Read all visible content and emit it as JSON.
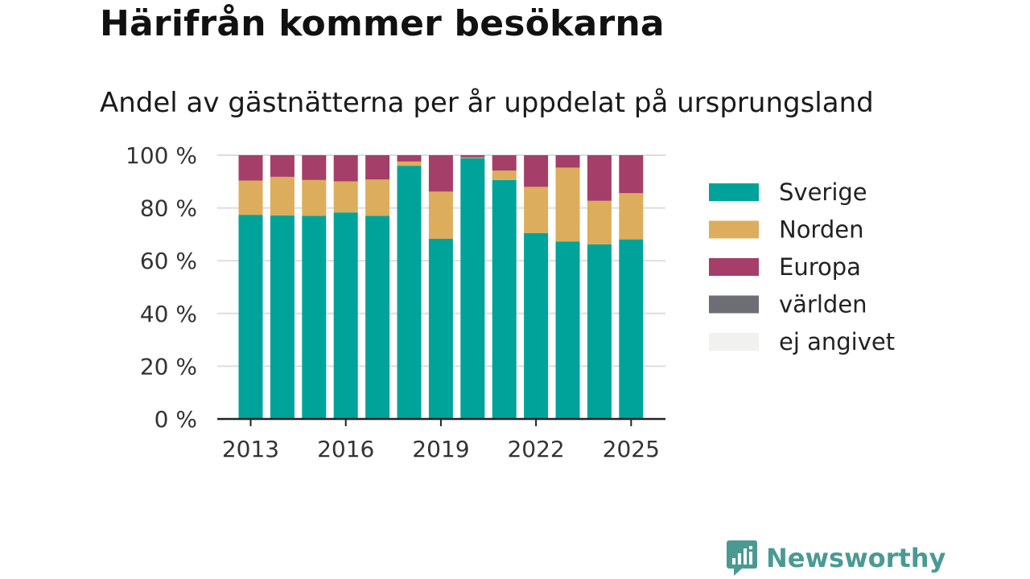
{
  "title": "Härifrån kommer besökarna",
  "subtitle": "Andel av gästnätterna per år uppdelat på ursprungsland",
  "brand": {
    "name": "Newsworthy",
    "logo_icon": "bar-chart-speech-bubble-icon",
    "color": "#4a9a93"
  },
  "chart_data": {
    "type": "bar",
    "stacked": true,
    "title": "Härifrån kommer besökarna",
    "subtitle": "Andel av gästnätterna per år uppdelat på ursprungsland",
    "categories": [
      2013,
      2014,
      2015,
      2016,
      2017,
      2018,
      2019,
      2020,
      2021,
      2022,
      2023,
      2024,
      2025
    ],
    "x_tick_labels": [
      "2013",
      "2016",
      "2019",
      "2022",
      "2025"
    ],
    "y_tick_labels": [
      "0 %",
      "20 %",
      "40 %",
      "60 %",
      "80 %",
      "100 %"
    ],
    "ylim": [
      0,
      100
    ],
    "grid": true,
    "legend_position": "right",
    "series": [
      {
        "name": "Sverige",
        "color": "#00a39a",
        "values": [
          77.4,
          77.2,
          77.0,
          78.3,
          77.0,
          96.0,
          68.3,
          98.9,
          90.6,
          70.5,
          67.3,
          66.2,
          68.1
        ]
      },
      {
        "name": "Norden",
        "color": "#dcad5c",
        "values": [
          13.0,
          14.6,
          13.6,
          11.8,
          13.8,
          1.6,
          17.9,
          0.3,
          3.6,
          17.5,
          28.0,
          16.5,
          17.5
        ]
      },
      {
        "name": "Europa",
        "color": "#a53e68",
        "values": [
          9.6,
          8.2,
          9.4,
          9.9,
          9.2,
          2.4,
          13.8,
          0.8,
          5.8,
          12.0,
          4.7,
          17.3,
          14.4
        ]
      },
      {
        "name": "världen",
        "color": "#6e6e75",
        "values": [
          0,
          0,
          0,
          0,
          0,
          0,
          0,
          0,
          0,
          0,
          0,
          0,
          0
        ]
      },
      {
        "name": "ej angivet",
        "color": "#f1f1ef",
        "values": [
          0,
          0,
          0,
          0,
          0,
          0,
          0,
          0,
          0,
          0,
          0,
          0,
          0
        ]
      }
    ]
  }
}
